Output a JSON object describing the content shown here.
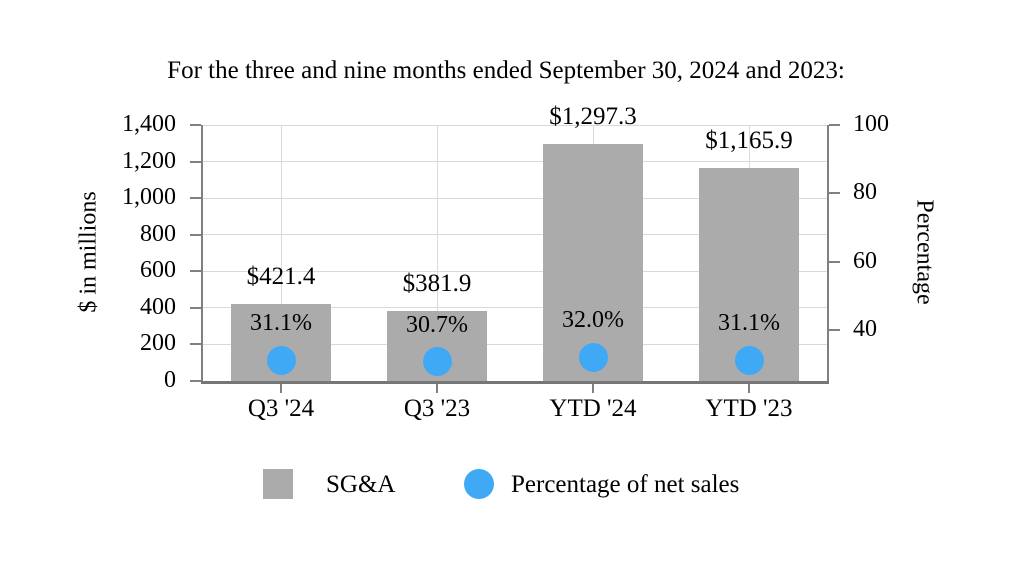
{
  "title": "For the three and nine months ended September 30, 2024 and 2023:",
  "chart_data": {
    "type": "bar",
    "subtype": "bar-with-scatter-overlay",
    "categories": [
      "Q3 '24",
      "Q3 '23",
      "YTD '24",
      "YTD '23"
    ],
    "series": [
      {
        "name": "SG&A",
        "type": "bar",
        "axis": "left",
        "color": "#ABABAB",
        "values": [
          421.4,
          381.9,
          1297.3,
          1165.9
        ],
        "data_labels": [
          "$421.4",
          "$381.9",
          "$1,297.3",
          "$1,165.9"
        ]
      },
      {
        "name": "Percentage of net sales",
        "type": "scatter",
        "axis": "right",
        "color": "#3FA9F5",
        "values": [
          31.1,
          30.7,
          32.0,
          31.1
        ],
        "data_labels": [
          "31.1%",
          "30.7%",
          "32.0%",
          "31.1%"
        ]
      }
    ],
    "left_axis": {
      "label": "$ in millions",
      "min": 0,
      "max": 1400,
      "tick_values": [
        0,
        200,
        400,
        600,
        800,
        1000,
        1200,
        1400
      ],
      "tick_labels": [
        "0",
        "200",
        "400",
        "600",
        "800",
        "1,000",
        "1,200",
        "1,400"
      ]
    },
    "right_axis": {
      "label": "Percentage",
      "min": 25,
      "max": 100,
      "tick_values": [
        40,
        60,
        80,
        100
      ],
      "tick_labels": [
        "40",
        "60",
        "80",
        "100"
      ]
    },
    "grid": true,
    "legend_position": "bottom",
    "colors": {
      "gridline": "#D9D9D9",
      "axis_line": "#808080",
      "baseline": "#767676",
      "text": "#000000",
      "background": "#FFFFFF"
    }
  }
}
